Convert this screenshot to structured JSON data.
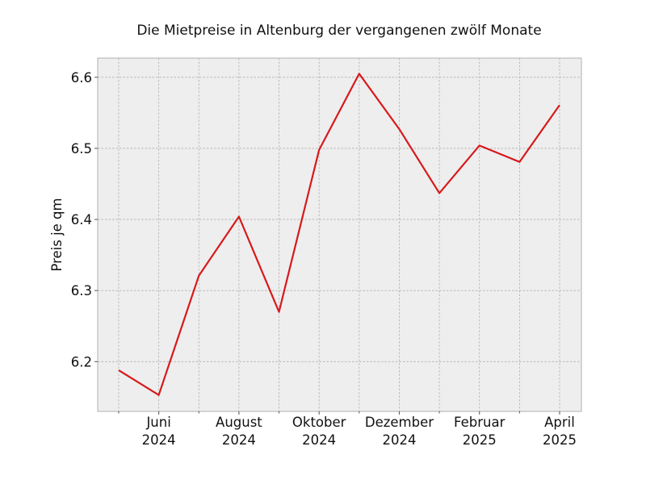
{
  "chart_data": {
    "type": "line",
    "title": "Die Mietpreise in Altenburg der vergangenen zwölf Monate",
    "xlabel": "",
    "ylabel": "Preis je qm",
    "x": [
      "2024-05",
      "2024-06",
      "2024-07",
      "2024-08",
      "2024-09",
      "2024-10",
      "2024-11",
      "2024-12",
      "2025-01",
      "2025-02",
      "2025-03",
      "2025-04"
    ],
    "x_tick_labels": [
      {
        "month": "Juni",
        "year": "2024"
      },
      {
        "month": "August",
        "year": "2024"
      },
      {
        "month": "Oktober",
        "year": "2024"
      },
      {
        "month": "Dezember",
        "year": "2024"
      },
      {
        "month": "Februar",
        "year": "2025"
      },
      {
        "month": "April",
        "year": "2025"
      }
    ],
    "y_ticks": [
      "6.2",
      "6.3",
      "6.4",
      "6.5",
      "6.6"
    ],
    "ylim": [
      6.13,
      6.627
    ],
    "series": [
      {
        "color": "#d7191c",
        "values": [
          6.188,
          6.153,
          6.321,
          6.404,
          6.27,
          6.498,
          6.605,
          6.527,
          6.437,
          6.504,
          6.481,
          6.561
        ]
      }
    ],
    "grid": true,
    "background": "#eeeeee"
  }
}
